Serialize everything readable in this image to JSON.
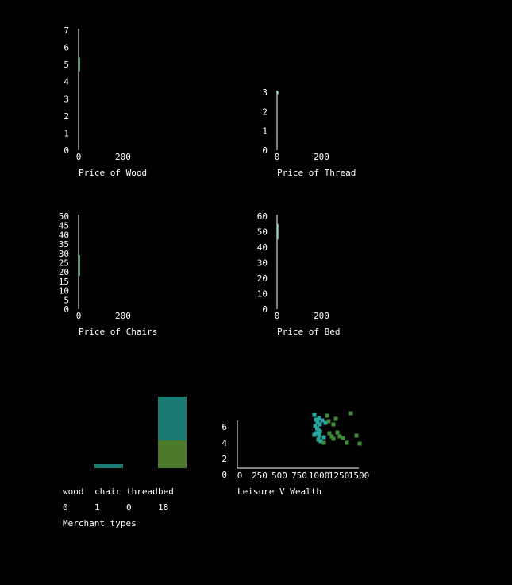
{
  "colors": {
    "background": "#000000",
    "axis": "#ffffff",
    "text": "#ffffff",
    "teal": "#1a7a72",
    "olive": "#4a7a2a",
    "mint": "#6fd3a8",
    "scatter_teal": "#2aa6a0",
    "scatter_green": "#3f8a38"
  },
  "chart_data": [
    {
      "id": "wood",
      "type": "line",
      "xlabel": "Price of Wood",
      "ylim": [
        0,
        7
      ],
      "yticks": [
        0,
        1,
        2,
        3,
        4,
        5,
        6,
        7
      ],
      "xticks": [
        0,
        200
      ],
      "series": [
        {
          "color": "#6fd3a8",
          "x": [
            0,
            0,
            0
          ],
          "y": [
            4.6,
            5.0,
            5.4
          ]
        }
      ]
    },
    {
      "id": "thread",
      "type": "line",
      "xlabel": "Price of Thread",
      "ylim": [
        0,
        3
      ],
      "yticks": [
        0,
        1,
        2,
        3
      ],
      "xticks": [
        0,
        200
      ],
      "series": [
        {
          "color": "#6fd3a8",
          "x": [
            0,
            0
          ],
          "y": [
            2.9,
            3.05
          ]
        }
      ]
    },
    {
      "id": "chairs",
      "type": "line",
      "xlabel": "Price of Chairs",
      "ylim": [
        0,
        50
      ],
      "yticks": [
        0,
        5,
        10,
        15,
        20,
        25,
        30,
        35,
        40,
        45,
        50
      ],
      "xticks": [
        0,
        200
      ],
      "series": [
        {
          "color": "#6fd3a8",
          "x": [
            0,
            0,
            0
          ],
          "y": [
            18,
            24,
            29
          ]
        }
      ]
    },
    {
      "id": "bed",
      "type": "line",
      "xlabel": "Price of Bed",
      "ylim": [
        0,
        60
      ],
      "yticks": [
        0,
        10,
        20,
        30,
        40,
        50,
        60
      ],
      "xticks": [
        0,
        200
      ],
      "series": [
        {
          "color": "#6fd3a8",
          "x": [
            0,
            0,
            0
          ],
          "y": [
            45,
            50,
            55
          ]
        }
      ]
    },
    {
      "id": "merchants",
      "type": "bar",
      "xlabel": "Merchant types",
      "categories": [
        "wood",
        "chair",
        "thread",
        "bed"
      ],
      "values": [
        0,
        1,
        0,
        18
      ],
      "value_labels": [
        "0",
        "1",
        "0",
        "18"
      ],
      "stack": [
        {
          "color": "#4a7a2a",
          "values": [
            0,
            0,
            0,
            7
          ]
        },
        {
          "color": "#1a7a72",
          "values": [
            0,
            1,
            0,
            11
          ]
        }
      ],
      "ylim": [
        0,
        18
      ]
    },
    {
      "id": "leisure",
      "type": "scatter",
      "xlabel": "Leisure V Wealth",
      "xlim": [
        0,
        1500
      ],
      "ylim": [
        0,
        6
      ],
      "xticks": [
        "0",
        "250",
        "500",
        "750",
        "1000",
        "1250",
        "1500"
      ],
      "yticks": [
        0,
        2,
        4,
        6
      ],
      "series": [
        {
          "color": "#2aa6a0",
          "points": [
            [
              940,
              6.7
            ],
            [
              960,
              6.1
            ],
            [
              980,
              5.8
            ],
            [
              1000,
              6.3
            ],
            [
              1010,
              5.5
            ],
            [
              950,
              5.3
            ],
            [
              975,
              5.0
            ],
            [
              990,
              4.8
            ],
            [
              1010,
              4.6
            ],
            [
              960,
              4.4
            ],
            [
              940,
              4.2
            ],
            [
              1000,
              4.1
            ],
            [
              1060,
              3.9
            ],
            [
              990,
              3.6
            ],
            [
              1020,
              3.4
            ],
            [
              1040,
              6.0
            ],
            [
              1080,
              5.7
            ]
          ]
        },
        {
          "color": "#3f8a38",
          "points": [
            [
              1100,
              6.6
            ],
            [
              1120,
              5.9
            ],
            [
              1180,
              5.5
            ],
            [
              1210,
              6.2
            ],
            [
              1230,
              4.5
            ],
            [
              1160,
              4.0
            ],
            [
              1260,
              4.0
            ],
            [
              1300,
              3.8
            ],
            [
              1350,
              3.2
            ],
            [
              1400,
              6.9
            ],
            [
              1470,
              4.1
            ],
            [
              1510,
              3.1
            ],
            [
              1180,
              3.7
            ],
            [
              1130,
              4.4
            ],
            [
              1060,
              3.2
            ]
          ]
        }
      ]
    }
  ]
}
